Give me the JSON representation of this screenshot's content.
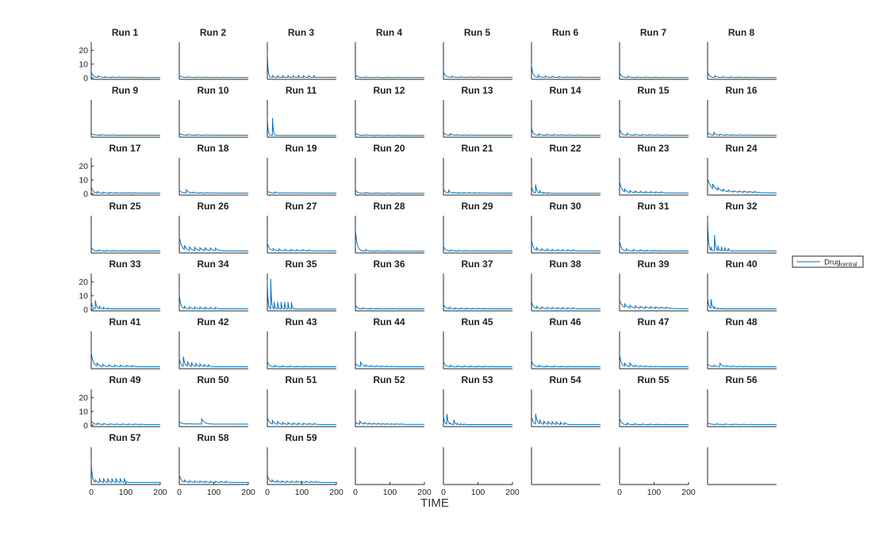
{
  "chart_data": {
    "type": "line",
    "layout": "small-multiples",
    "grid": false,
    "xlabel": "TIME",
    "ylabel": "",
    "xlim": [
      0,
      200
    ],
    "ylim": [
      -1,
      26
    ],
    "x_ticks": [
      0,
      100,
      200
    ],
    "y_ticks": [
      0,
      10,
      20
    ],
    "legend": {
      "entries": [
        "Drugcentral"
      ],
      "placement": "right",
      "display_main": "Drug",
      "display_sub": "central"
    },
    "panels": [
      {
        "title": "Run 1",
        "peaks": [
          4.5,
          1.5,
          0.9,
          0.8,
          0.7,
          0.6,
          0.6,
          0.5
        ],
        "interval": 20,
        "decay": 0.18,
        "base": 0.3
      },
      {
        "title": "Run 2",
        "peaks": [
          1.8,
          0.9,
          0.7,
          0.6,
          0.5,
          0.5
        ],
        "interval": 25,
        "decay": 0.15,
        "base": 0.3
      },
      {
        "title": "Run 3",
        "peaks": [
          19,
          2,
          2,
          2,
          2,
          2,
          2,
          2,
          2,
          2
        ],
        "interval": 15,
        "decay": 0.5,
        "base": 0.4
      },
      {
        "title": "Run 4",
        "peaks": [
          2.5,
          0.8,
          0.6,
          0.5,
          0.5
        ],
        "interval": 30,
        "decay": 0.2,
        "base": 0.3
      },
      {
        "title": "Run 5",
        "peaks": [
          4.5,
          1.2,
          0.9,
          0.8,
          0.7,
          0.6
        ],
        "interval": 25,
        "decay": 0.18,
        "base": 0.4
      },
      {
        "title": "Run 6",
        "peaks": [
          9.5,
          2,
          1.5,
          1.2,
          1,
          0.9,
          0.8,
          0.7
        ],
        "interval": 20,
        "decay": 0.25,
        "base": 0.4
      },
      {
        "title": "Run 7",
        "peaks": [
          4,
          1.2,
          0.8,
          0.7,
          0.6,
          0.5
        ],
        "interval": 25,
        "decay": 0.2,
        "base": 0.3
      },
      {
        "title": "Run 8",
        "peaks": [
          4.5,
          1.5,
          1,
          0.8,
          0.7,
          0.6,
          0.5
        ],
        "interval": 22,
        "decay": 0.2,
        "base": 0.3
      },
      {
        "title": "Run 9",
        "peaks": [
          1.5,
          0.8,
          0.6,
          0.5,
          0.5
        ],
        "interval": 30,
        "decay": 0.12,
        "base": 0.4
      },
      {
        "title": "Run 10",
        "peaks": [
          2,
          1,
          0.8,
          0.7,
          0.6,
          0.5
        ],
        "interval": 25,
        "decay": 0.15,
        "base": 0.4
      },
      {
        "title": "Run 11",
        "peaks": [
          13,
          13
        ],
        "interval": 15,
        "decay": 0.45,
        "base": 0.3
      },
      {
        "title": "Run 12",
        "peaks": [
          2,
          0.8,
          0.6,
          0.5,
          0.5
        ],
        "interval": 30,
        "decay": 0.15,
        "base": 0.3
      },
      {
        "title": "Run 13",
        "peaks": [
          2.5,
          1.5,
          0.8,
          0.7,
          0.6,
          0.5
        ],
        "interval": 20,
        "decay": 0.18,
        "base": 0.4
      },
      {
        "title": "Run 14",
        "peaks": [
          6,
          1.5,
          1.2,
          1,
          0.9,
          0.8,
          0.7
        ],
        "interval": 22,
        "decay": 0.22,
        "base": 0.4
      },
      {
        "title": "Run 15",
        "peaks": [
          5.5,
          1.8,
          1.2,
          1,
          0.9,
          0.8,
          0.7
        ],
        "interval": 22,
        "decay": 0.2,
        "base": 0.4
      },
      {
        "title": "Run 16",
        "peaks": [
          3,
          2.5,
          1.2,
          1,
          0.9,
          0.8,
          0.7,
          0.6
        ],
        "interval": 18,
        "decay": 0.2,
        "base": 0.4
      },
      {
        "title": "Run 17",
        "peaks": [
          5.5,
          1.5,
          1.1,
          1,
          0.9,
          0.8,
          0.8,
          0.7,
          0.7
        ],
        "interval": 18,
        "decay": 0.22,
        "base": 0.4
      },
      {
        "title": "Run 18",
        "peaks": [
          2.5,
          2.8,
          1,
          0.8,
          0.8,
          0.7,
          0.6
        ],
        "interval": 20,
        "decay": 0.15,
        "base": 0.4
      },
      {
        "title": "Run 19",
        "peaks": [
          2,
          1.2,
          0.8,
          0.8,
          0.7,
          0.6,
          0.6
        ],
        "interval": 22,
        "decay": 0.15,
        "base": 0.4
      },
      {
        "title": "Run 20",
        "peaks": [
          2.8,
          0.9,
          0.7,
          0.6,
          0.6
        ],
        "interval": 30,
        "decay": 0.2,
        "base": 0.3
      },
      {
        "title": "Run 21",
        "peaks": [
          3.5,
          2.5,
          1,
          0.9,
          0.9,
          0.8,
          0.8,
          0.7,
          0.7
        ],
        "interval": 15,
        "decay": 0.2,
        "base": 0.4
      },
      {
        "title": "Run 22",
        "peaks": [
          6,
          6.5,
          2,
          1,
          0.8
        ],
        "interval": 12,
        "decay": 0.3,
        "base": 0.3
      },
      {
        "title": "Run 23",
        "peaks": [
          9,
          2.5,
          2,
          1.8,
          1.6,
          1.5,
          1.4,
          1.3,
          1.2
        ],
        "interval": 15,
        "decay": 0.15,
        "base": 0.5
      },
      {
        "title": "Run 24",
        "peaks": [
          11,
          4,
          2.5,
          2,
          1.8,
          1.6,
          1.5,
          1.4,
          1.3,
          1.2
        ],
        "interval": 15,
        "decay": 0.08,
        "base": 0.6
      },
      {
        "title": "Run 25",
        "peaks": [
          3.5,
          1.2,
          1,
          0.9,
          0.8,
          0.8,
          0.7
        ],
        "interval": 22,
        "decay": 0.2,
        "base": 0.4
      },
      {
        "title": "Run 26",
        "peaks": [
          11,
          3.5,
          3,
          2.8,
          2.6,
          2.5,
          2.4,
          2.3
        ],
        "interval": 15,
        "decay": 0.15,
        "base": 0.5
      },
      {
        "title": "Run 27",
        "peaks": [
          6.5,
          2,
          1.8,
          1.6,
          1.5,
          1.4,
          1.3,
          1.2
        ],
        "interval": 17,
        "decay": 0.18,
        "base": 0.5
      },
      {
        "title": "Run 28",
        "peaks": [
          16,
          1.5,
          0.8,
          0.6
        ],
        "interval": 30,
        "decay": 0.2,
        "base": 0.3
      },
      {
        "title": "Run 29",
        "peaks": [
          4,
          1.2,
          1,
          0.9,
          0.8,
          0.7,
          0.6
        ],
        "interval": 22,
        "decay": 0.2,
        "base": 0.4
      },
      {
        "title": "Run 30",
        "peaks": [
          9,
          2.5,
          2,
          1.8,
          1.6,
          1.5,
          1.4,
          1.3,
          1.2
        ],
        "interval": 15,
        "decay": 0.2,
        "base": 0.5
      },
      {
        "title": "Run 31",
        "peaks": [
          8,
          2,
          1.5,
          1.2,
          1,
          0.9,
          0.8,
          0.7
        ],
        "interval": 20,
        "decay": 0.2,
        "base": 0.4
      },
      {
        "title": "Run 32",
        "peaks": [
          24,
          3,
          12,
          4,
          3.5,
          3,
          2.5
        ],
        "interval": 10,
        "decay": 0.4,
        "base": 0.5
      },
      {
        "title": "Run 33",
        "peaks": [
          6,
          6.5,
          2,
          1.5,
          1.2
        ],
        "interval": 12,
        "decay": 0.3,
        "base": 0.4
      },
      {
        "title": "Run 34",
        "peaks": [
          11,
          2,
          2,
          1.8,
          1.8,
          1.6,
          1.6,
          1.5
        ],
        "interval": 15,
        "decay": 0.25,
        "base": 0.5
      },
      {
        "title": "Run 35",
        "peaks": [
          21,
          22,
          5.5,
          5.5,
          5.5,
          5.5,
          5.5,
          5.5
        ],
        "interval": 10,
        "decay": 0.5,
        "base": 0.3
      },
      {
        "title": "Run 36",
        "peaks": [
          3.5,
          1.2,
          1,
          0.9,
          0.8,
          0.8,
          0.7
        ],
        "interval": 22,
        "decay": 0.2,
        "base": 0.4
      },
      {
        "title": "Run 37",
        "peaks": [
          4,
          1.5,
          1.2,
          1.1,
          1,
          1,
          0.9,
          0.9,
          0.8
        ],
        "interval": 17,
        "decay": 0.2,
        "base": 0.4
      },
      {
        "title": "Run 38",
        "peaks": [
          6,
          2,
          1.8,
          1.6,
          1.5,
          1.4,
          1.4,
          1.3,
          1.3
        ],
        "interval": 15,
        "decay": 0.2,
        "base": 0.5
      },
      {
        "title": "Run 39",
        "peaks": [
          7,
          3,
          2.5,
          2.2,
          2,
          1.9,
          1.8,
          1.7,
          1.6,
          1.5
        ],
        "interval": 15,
        "decay": 0.12,
        "base": 0.6
      },
      {
        "title": "Run 40",
        "peaks": [
          9,
          7,
          1.5,
          1,
          0.8
        ],
        "interval": 10,
        "decay": 0.3,
        "base": 0.4
      },
      {
        "title": "Run 41",
        "peaks": [
          11,
          3,
          2,
          1.8,
          1.7,
          1.6,
          1.5,
          1.4
        ],
        "interval": 17,
        "decay": 0.18,
        "base": 0.5
      },
      {
        "title": "Run 42",
        "peaks": [
          7,
          7.5,
          4,
          3.5,
          3,
          2.5,
          2,
          1.8
        ],
        "interval": 12,
        "decay": 0.25,
        "base": 0.5
      },
      {
        "title": "Run 43",
        "peaks": [
          4.5,
          1.5,
          1.2,
          1,
          0.9,
          0.8,
          0.7
        ],
        "interval": 22,
        "decay": 0.2,
        "base": 0.4
      },
      {
        "title": "Run 44",
        "peaks": [
          3.5,
          4,
          1.5,
          1.2,
          1.1,
          1,
          0.9,
          0.8
        ],
        "interval": 15,
        "decay": 0.2,
        "base": 0.5
      },
      {
        "title": "Run 45",
        "peaks": [
          4.5,
          1.5,
          1.2,
          1.1,
          1,
          1,
          0.9,
          0.8
        ],
        "interval": 20,
        "decay": 0.2,
        "base": 0.4
      },
      {
        "title": "Run 46",
        "peaks": [
          5,
          1.5,
          1.2,
          1,
          0.9,
          0.8,
          0.7
        ],
        "interval": 22,
        "decay": 0.2,
        "base": 0.4
      },
      {
        "title": "Run 47",
        "peaks": [
          10,
          3,
          3.5,
          1.5,
          1.2,
          1,
          0.9,
          0.8
        ],
        "interval": 15,
        "decay": 0.22,
        "base": 0.5
      },
      {
        "title": "Run 48",
        "peaks": [
          2.5,
          1.5,
          3,
          1.2,
          1,
          0.9,
          0.8,
          0.7
        ],
        "interval": 18,
        "decay": 0.18,
        "base": 0.5
      },
      {
        "title": "Run 49",
        "peaks": [
          3.5,
          1.5,
          1.2,
          1.1,
          1,
          1,
          0.9,
          0.9,
          0.8
        ],
        "interval": 18,
        "decay": 0.18,
        "base": 0.5
      },
      {
        "title": "Run 50",
        "peaks": [
          2.5,
          1.2,
          1,
          0.8,
          0.7
        ],
        "interval": 25,
        "decay": 0.12,
        "base": 0.8,
        "extra": [
          [
            65,
            4.5
          ]
        ]
      },
      {
        "title": "Run 51",
        "peaks": [
          6,
          3,
          2.5,
          2,
          1.8,
          1.6,
          1.5,
          1.4,
          1.3,
          1.2
        ],
        "interval": 15,
        "decay": 0.18,
        "base": 0.5
      },
      {
        "title": "Run 52",
        "peaks": [
          2.5,
          2.8,
          1.8,
          1.5,
          1.4,
          1.3,
          1.2,
          1.1,
          1,
          1,
          0.9
        ],
        "interval": 13,
        "decay": 0.18,
        "base": 0.6
      },
      {
        "title": "Run 53",
        "peaks": [
          7,
          8,
          1.2,
          4,
          1.2,
          1,
          0.9
        ],
        "interval": 10,
        "decay": 0.3,
        "base": 0.4
      },
      {
        "title": "Run 54",
        "peaks": [
          6.5,
          8,
          3.5,
          3,
          2.8,
          2.5,
          2.3,
          2,
          1.8
        ],
        "interval": 12,
        "decay": 0.22,
        "base": 0.5
      },
      {
        "title": "Run 55",
        "peaks": [
          5.5,
          1.5,
          1.2,
          1,
          0.9,
          0.8,
          0.7
        ],
        "interval": 22,
        "decay": 0.2,
        "base": 0.4
      },
      {
        "title": "Run 56",
        "peaks": [
          2,
          1,
          0.9,
          0.8,
          0.7,
          0.6
        ],
        "interval": 25,
        "decay": 0.15,
        "base": 0.5
      },
      {
        "title": "Run 57",
        "peaks": [
          15,
          2.5,
          3.5,
          3.5,
          3.5,
          3.5,
          3.5,
          3.5,
          3.5
        ],
        "interval": 12,
        "decay": 0.35,
        "base": 0.5
      },
      {
        "title": "Run 58",
        "peaks": [
          6.5,
          2,
          1.8,
          1.6,
          1.5,
          1.4,
          1.4,
          1.3,
          1.3,
          1.2
        ],
        "interval": 15,
        "decay": 0.2,
        "base": 0.5
      },
      {
        "title": "Run 59",
        "peaks": [
          6,
          2,
          1.8,
          1.6,
          1.5,
          1.4,
          1.4,
          1.3,
          1.3,
          1.2,
          1.2
        ],
        "interval": 14,
        "decay": 0.2,
        "base": 0.5
      }
    ]
  }
}
